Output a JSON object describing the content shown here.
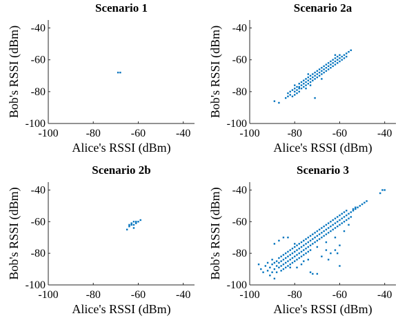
{
  "colors": {
    "points": "#0072BD",
    "axis": "#262626",
    "text": "#000000"
  },
  "chart_data": [
    {
      "type": "scatter",
      "title": "Scenario 1",
      "xlabel": "Alice's RSSI (dBm)",
      "ylabel": "Bob's RSSI (dBm)",
      "xlim": [
        -100,
        -35
      ],
      "ylim": [
        -100,
        -35
      ],
      "xticks": [
        -100,
        -80,
        -60,
        -40
      ],
      "yticks": [
        -100,
        -80,
        -60,
        -40
      ],
      "xtick_labels": [
        "-100",
        "-80",
        "-60",
        "-40"
      ],
      "ytick_labels": [
        "-100",
        "-80",
        "-60",
        "-40"
      ],
      "points": [
        [
          -69,
          -68
        ],
        [
          -68,
          -68
        ]
      ]
    },
    {
      "type": "scatter",
      "title": "Scenario 2a",
      "xlabel": "Alice's RSSI (dBm)",
      "ylabel": "Bob's RSSI (dBm)",
      "xlim": [
        -100,
        -35
      ],
      "ylim": [
        -100,
        -35
      ],
      "xticks": [
        -100,
        -80,
        -60,
        -40
      ],
      "yticks": [
        -100,
        -80,
        -60,
        -40
      ],
      "xtick_labels": [
        "-100",
        "-80",
        "-60",
        "-40"
      ],
      "ytick_labels": [
        "-100",
        "-80",
        "-60",
        "-40"
      ],
      "points": [
        [
          -89,
          -86
        ],
        [
          -87,
          -87
        ],
        [
          -84,
          -84
        ],
        [
          -83,
          -83
        ],
        [
          -83,
          -81
        ],
        [
          -82,
          -80
        ],
        [
          -82,
          -82
        ],
        [
          -81,
          -79
        ],
        [
          -81,
          -83
        ],
        [
          -80,
          -78
        ],
        [
          -80,
          -80
        ],
        [
          -80,
          -76
        ],
        [
          -79,
          -79
        ],
        [
          -79,
          -81
        ],
        [
          -79,
          -77
        ],
        [
          -78,
          -77
        ],
        [
          -78,
          -78
        ],
        [
          -78,
          -80
        ],
        [
          -78,
          -75
        ],
        [
          -77,
          -76
        ],
        [
          -77,
          -78
        ],
        [
          -77,
          -74
        ],
        [
          -76,
          -75
        ],
        [
          -76,
          -77
        ],
        [
          -76,
          -73
        ],
        [
          -75,
          -74
        ],
        [
          -75,
          -76
        ],
        [
          -75,
          -72
        ],
        [
          -75,
          -78
        ],
        [
          -74,
          -73
        ],
        [
          -74,
          -75
        ],
        [
          -74,
          -71
        ],
        [
          -73,
          -72
        ],
        [
          -73,
          -74
        ],
        [
          -73,
          -70
        ],
        [
          -73,
          -76
        ],
        [
          -72,
          -71
        ],
        [
          -72,
          -73
        ],
        [
          -72,
          -69
        ],
        [
          -71,
          -70
        ],
        [
          -71,
          -72
        ],
        [
          -71,
          -68
        ],
        [
          -71,
          -84
        ],
        [
          -70,
          -69
        ],
        [
          -70,
          -71
        ],
        [
          -70,
          -67
        ],
        [
          -69,
          -68
        ],
        [
          -69,
          -70
        ],
        [
          -69,
          -66
        ],
        [
          -68,
          -67
        ],
        [
          -68,
          -69
        ],
        [
          -68,
          -65
        ],
        [
          -67,
          -66
        ],
        [
          -67,
          -68
        ],
        [
          -67,
          -64
        ],
        [
          -66,
          -65
        ],
        [
          -66,
          -67
        ],
        [
          -66,
          -63
        ],
        [
          -65,
          -64
        ],
        [
          -65,
          -66
        ],
        [
          -65,
          -62
        ],
        [
          -64,
          -63
        ],
        [
          -64,
          -65
        ],
        [
          -64,
          -61
        ],
        [
          -63,
          -62
        ],
        [
          -63,
          -64
        ],
        [
          -63,
          -60
        ],
        [
          -62,
          -61
        ],
        [
          -62,
          -63
        ],
        [
          -62,
          -59
        ],
        [
          -61,
          -60
        ],
        [
          -61,
          -62
        ],
        [
          -61,
          -58
        ],
        [
          -60,
          -59
        ],
        [
          -60,
          -61
        ],
        [
          -60,
          -57
        ],
        [
          -59,
          -58
        ],
        [
          -59,
          -60
        ],
        [
          -58,
          -57
        ],
        [
          -58,
          -59
        ],
        [
          -57,
          -56
        ],
        [
          -57,
          -58
        ],
        [
          -56,
          -55
        ],
        [
          -55,
          -54
        ],
        [
          -74,
          -69
        ],
        [
          -68,
          -72
        ],
        [
          -62,
          -57
        ],
        [
          -80,
          -82
        ]
      ]
    },
    {
      "type": "scatter",
      "title": "Scenario 2b",
      "xlabel": "Alice's RSSI (dBm)",
      "ylabel": "Bob's RSSI (dBm)",
      "xlim": [
        -100,
        -35
      ],
      "ylim": [
        -100,
        -35
      ],
      "xticks": [
        -100,
        -80,
        -60,
        -40
      ],
      "yticks": [
        -100,
        -80,
        -60,
        -40
      ],
      "xtick_labels": [
        "-100",
        "-80",
        "-60",
        "-40"
      ],
      "ytick_labels": [
        "-100",
        "-80",
        "-60",
        "-40"
      ],
      "points": [
        [
          -65,
          -65
        ],
        [
          -64,
          -63
        ],
        [
          -63,
          -62
        ],
        [
          -63,
          -61
        ],
        [
          -62,
          -62
        ],
        [
          -62,
          -60
        ],
        [
          -61,
          -61
        ],
        [
          -61,
          -60
        ],
        [
          -60,
          -60
        ],
        [
          -59,
          -59
        ],
        [
          -62,
          -64
        ],
        [
          -64,
          -62
        ]
      ]
    },
    {
      "type": "scatter",
      "title": "Scenario 3",
      "xlabel": "Alice's RSSI (dBm)",
      "ylabel": "Bob's RSSI (dBm)",
      "xlim": [
        -100,
        -35
      ],
      "ylim": [
        -100,
        -35
      ],
      "xticks": [
        -100,
        -80,
        -60,
        -40
      ],
      "yticks": [
        -100,
        -80,
        -60,
        -40
      ],
      "xtick_labels": [
        "-100",
        "-80",
        "-60",
        "-40"
      ],
      "ytick_labels": [
        "-100",
        "-80",
        "-60",
        "-40"
      ],
      "points": [
        [
          -96,
          -87
        ],
        [
          -95,
          -90
        ],
        [
          -94,
          -92
        ],
        [
          -93,
          -88
        ],
        [
          -92,
          -91
        ],
        [
          -92,
          -86
        ],
        [
          -91,
          -89
        ],
        [
          -91,
          -94
        ],
        [
          -90,
          -87
        ],
        [
          -90,
          -92
        ],
        [
          -90,
          -84
        ],
        [
          -89,
          -90
        ],
        [
          -89,
          -86
        ],
        [
          -89,
          -96
        ],
        [
          -88,
          -88
        ],
        [
          -88,
          -85
        ],
        [
          -88,
          -92
        ],
        [
          -87,
          -86
        ],
        [
          -87,
          -89
        ],
        [
          -87,
          -83
        ],
        [
          -86,
          -85
        ],
        [
          -86,
          -88
        ],
        [
          -86,
          -82
        ],
        [
          -86,
          -91
        ],
        [
          -85,
          -84
        ],
        [
          -85,
          -87
        ],
        [
          -85,
          -81
        ],
        [
          -85,
          -90
        ],
        [
          -84,
          -83
        ],
        [
          -84,
          -86
        ],
        [
          -84,
          -80
        ],
        [
          -84,
          -89
        ],
        [
          -83,
          -82
        ],
        [
          -83,
          -85
        ],
        [
          -83,
          -79
        ],
        [
          -83,
          -88
        ],
        [
          -82,
          -81
        ],
        [
          -82,
          -84
        ],
        [
          -82,
          -78
        ],
        [
          -82,
          -87
        ],
        [
          -81,
          -80
        ],
        [
          -81,
          -83
        ],
        [
          -81,
          -77
        ],
        [
          -81,
          -86
        ],
        [
          -80,
          -79
        ],
        [
          -80,
          -82
        ],
        [
          -80,
          -76
        ],
        [
          -80,
          -85
        ],
        [
          -79,
          -78
        ],
        [
          -79,
          -81
        ],
        [
          -79,
          -75
        ],
        [
          -79,
          -84
        ],
        [
          -78,
          -77
        ],
        [
          -78,
          -80
        ],
        [
          -78,
          -74
        ],
        [
          -78,
          -83
        ],
        [
          -77,
          -76
        ],
        [
          -77,
          -79
        ],
        [
          -77,
          -73
        ],
        [
          -77,
          -82
        ],
        [
          -76,
          -75
        ],
        [
          -76,
          -78
        ],
        [
          -76,
          -72
        ],
        [
          -76,
          -81
        ],
        [
          -75,
          -74
        ],
        [
          -75,
          -77
        ],
        [
          -75,
          -71
        ],
        [
          -75,
          -80
        ],
        [
          -74,
          -73
        ],
        [
          -74,
          -76
        ],
        [
          -74,
          -70
        ],
        [
          -74,
          -79
        ],
        [
          -73,
          -72
        ],
        [
          -73,
          -75
        ],
        [
          -73,
          -69
        ],
        [
          -73,
          -78
        ],
        [
          -72,
          -71
        ],
        [
          -72,
          -74
        ],
        [
          -72,
          -68
        ],
        [
          -71,
          -70
        ],
        [
          -71,
          -73
        ],
        [
          -71,
          -67
        ],
        [
          -70,
          -69
        ],
        [
          -70,
          -72
        ],
        [
          -70,
          -66
        ],
        [
          -69,
          -68
        ],
        [
          -69,
          -71
        ],
        [
          -69,
          -65
        ],
        [
          -68,
          -67
        ],
        [
          -68,
          -70
        ],
        [
          -68,
          -64
        ],
        [
          -67,
          -66
        ],
        [
          -67,
          -69
        ],
        [
          -67,
          -63
        ],
        [
          -66,
          -65
        ],
        [
          -66,
          -68
        ],
        [
          -66,
          -62
        ],
        [
          -65,
          -64
        ],
        [
          -65,
          -67
        ],
        [
          -65,
          -61
        ],
        [
          -64,
          -63
        ],
        [
          -64,
          -66
        ],
        [
          -64,
          -60
        ],
        [
          -63,
          -62
        ],
        [
          -63,
          -65
        ],
        [
          -63,
          -59
        ],
        [
          -62,
          -61
        ],
        [
          -62,
          -64
        ],
        [
          -62,
          -58
        ],
        [
          -61,
          -60
        ],
        [
          -61,
          -63
        ],
        [
          -61,
          -57
        ],
        [
          -60,
          -59
        ],
        [
          -60,
          -62
        ],
        [
          -60,
          -56
        ],
        [
          -59,
          -58
        ],
        [
          -59,
          -61
        ],
        [
          -59,
          -55
        ],
        [
          -58,
          -57
        ],
        [
          -58,
          -60
        ],
        [
          -58,
          -54
        ],
        [
          -57,
          -56
        ],
        [
          -57,
          -59
        ],
        [
          -57,
          -53
        ],
        [
          -56,
          -55
        ],
        [
          -56,
          -58
        ],
        [
          -55,
          -54
        ],
        [
          -55,
          -57
        ],
        [
          -54,
          -53
        ],
        [
          -54,
          -52
        ],
        [
          -53,
          -52
        ],
        [
          -53,
          -51
        ],
        [
          -52,
          -51
        ],
        [
          -51,
          -50
        ],
        [
          -50,
          -49
        ],
        [
          -49,
          -48
        ],
        [
          -48,
          -47
        ],
        [
          -41,
          -40
        ],
        [
          -40,
          -40
        ],
        [
          -42,
          -42
        ],
        [
          -87,
          -72
        ],
        [
          -85,
          -70
        ],
        [
          -80,
          -74
        ],
        [
          -77,
          -87
        ],
        [
          -76,
          -85
        ],
        [
          -73,
          -92
        ],
        [
          -72,
          -93
        ],
        [
          -70,
          -93
        ],
        [
          -68,
          -82
        ],
        [
          -65,
          -84
        ],
        [
          -64,
          -80
        ],
        [
          -62,
          -78
        ],
        [
          -60,
          -75
        ],
        [
          -83,
          -70
        ],
        [
          -82,
          -89
        ],
        [
          -79,
          -89
        ],
        [
          -74,
          -84
        ],
        [
          -70,
          -76
        ],
        [
          -66,
          -73
        ],
        [
          -62,
          -70
        ],
        [
          -58,
          -66
        ],
        [
          -60,
          -88
        ],
        [
          -61,
          -80
        ],
        [
          -56,
          -62
        ],
        [
          -89,
          -74
        ],
        [
          -66,
          -78
        ]
      ]
    }
  ]
}
